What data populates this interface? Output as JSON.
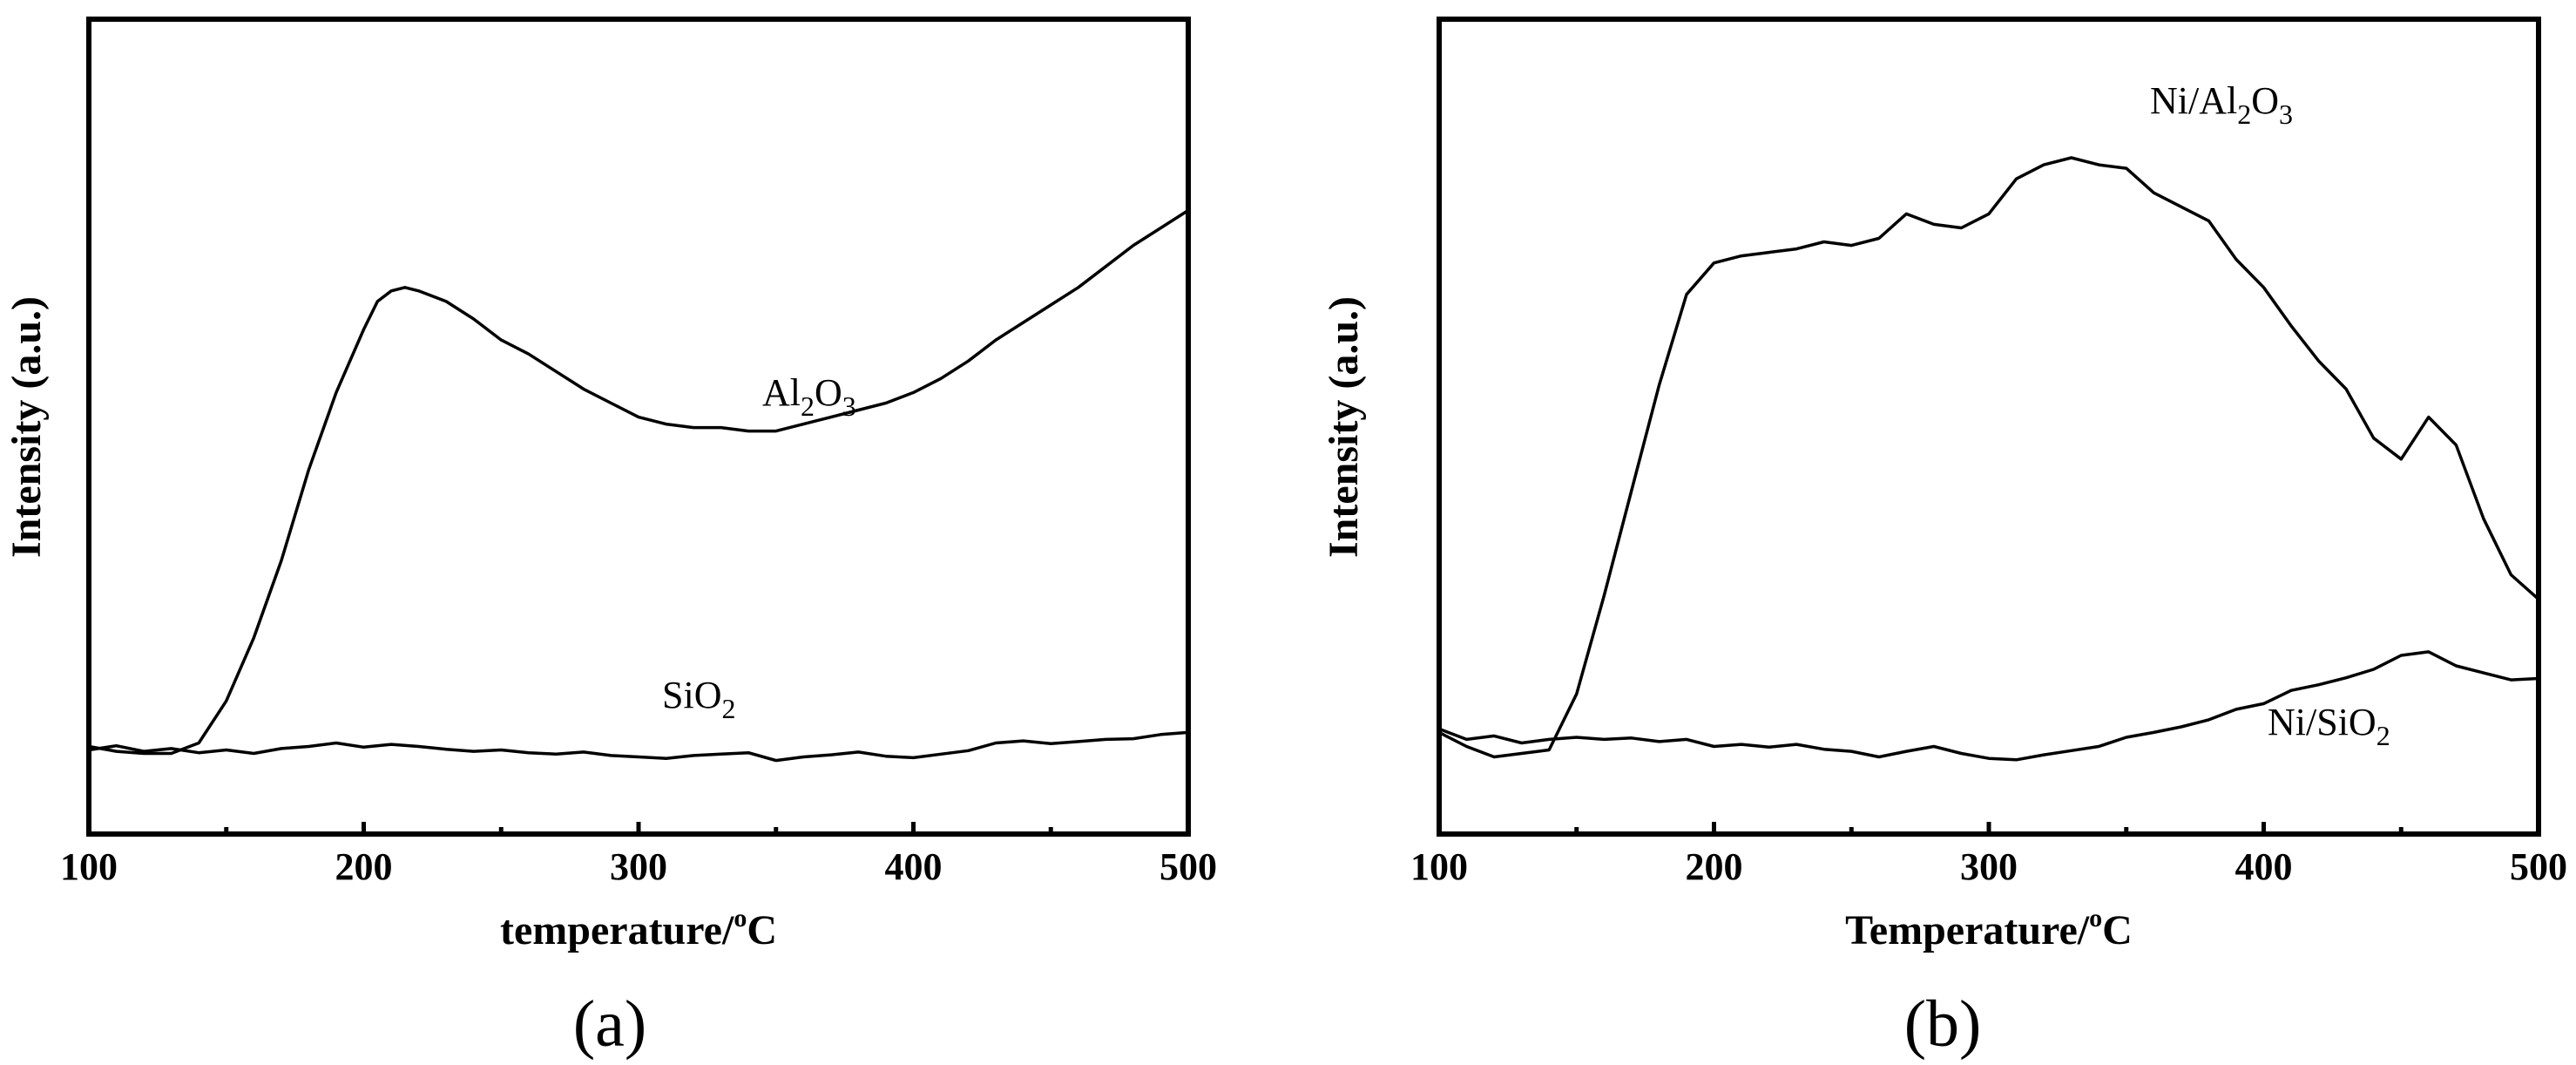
{
  "chart_data": [
    {
      "type": "line",
      "panel_label": "(a)",
      "xlabel": "temperature/",
      "xlabel_sup": "o",
      "xlabel_tail": "C",
      "ylabel": "Intensity (a.u.)",
      "xlim": [
        100,
        500
      ],
      "ylim": [
        0,
        100
      ],
      "xticks": [
        100,
        200,
        300,
        400,
        500
      ],
      "minor_xticks": [
        150,
        250,
        350,
        450
      ],
      "yticks_shown": false,
      "grid": false,
      "legend": "none",
      "series": [
        {
          "name": "Al2O3",
          "label_parts": [
            "Al",
            "2",
            "O",
            "3"
          ],
          "x": [
            100,
            110,
            120,
            130,
            140,
            150,
            160,
            170,
            180,
            190,
            200,
            205,
            210,
            215,
            220,
            230,
            240,
            250,
            260,
            270,
            280,
            290,
            300,
            310,
            320,
            330,
            340,
            350,
            360,
            370,
            380,
            390,
            400,
            410,
            420,
            430,
            440,
            450,
            460,
            470,
            480,
            490,
            500
          ],
          "values": [
            12.5,
            11.8,
            11.5,
            11.5,
            13,
            19,
            28,
            39,
            52,
            63,
            72,
            76,
            77.5,
            78,
            77.5,
            76,
            73.5,
            70.5,
            68.5,
            66,
            63.5,
            61.5,
            59.5,
            58.5,
            58,
            58,
            57.5,
            57.5,
            58.5,
            59.5,
            60.5,
            61.5,
            63,
            65,
            67.5,
            70.5,
            73,
            75.5,
            78,
            81,
            84,
            86.5,
            89
          ]
        },
        {
          "name": "SiO2",
          "label_parts": [
            "SiO",
            "2"
          ],
          "x": [
            100,
            110,
            120,
            130,
            140,
            150,
            160,
            170,
            180,
            190,
            200,
            210,
            220,
            230,
            240,
            250,
            260,
            270,
            280,
            290,
            300,
            310,
            320,
            330,
            340,
            350,
            360,
            370,
            380,
            390,
            400,
            410,
            420,
            430,
            440,
            450,
            460,
            470,
            480,
            490,
            500
          ],
          "values": [
            12,
            12.6,
            11.8,
            12.2,
            11.6,
            12,
            11.5,
            12.2,
            12.5,
            13,
            12.4,
            12.8,
            12.5,
            12.1,
            11.8,
            12,
            11.6,
            11.4,
            11.7,
            11.2,
            11,
            10.8,
            11.2,
            11.4,
            11.6,
            10.5,
            11,
            11.3,
            11.7,
            11.1,
            10.9,
            11.4,
            11.9,
            13,
            13.3,
            12.9,
            13.2,
            13.5,
            13.6,
            14.2,
            14.5
          ]
        }
      ]
    },
    {
      "type": "line",
      "panel_label": "(b)",
      "xlabel": "Temperature/",
      "xlabel_sup": "o",
      "xlabel_tail": "C",
      "ylabel": "Intensity (a.u.)",
      "xlim": [
        100,
        500
      ],
      "ylim": [
        0,
        100
      ],
      "xticks": [
        100,
        200,
        300,
        400,
        500
      ],
      "minor_xticks": [
        150,
        250,
        350,
        450
      ],
      "yticks_shown": false,
      "grid": false,
      "legend": "none",
      "series": [
        {
          "name": "Ni/Al2O3",
          "label_parts": [
            "Ni/Al",
            "2",
            "O",
            "3"
          ],
          "x": [
            100,
            110,
            120,
            130,
            140,
            150,
            160,
            170,
            180,
            190,
            200,
            210,
            220,
            230,
            240,
            250,
            260,
            270,
            280,
            290,
            300,
            310,
            320,
            330,
            340,
            350,
            360,
            370,
            380,
            390,
            400,
            410,
            420,
            430,
            440,
            450,
            460,
            470,
            480,
            490,
            500
          ],
          "values": [
            14.5,
            12.5,
            11,
            11.5,
            12,
            20,
            34,
            49,
            64,
            77,
            81.5,
            82.5,
            83,
            83.5,
            84.5,
            84,
            85,
            88.5,
            87,
            86.5,
            88.5,
            93.5,
            95.5,
            96.5,
            95.5,
            95,
            91.5,
            89.5,
            87.5,
            82,
            78,
            72.5,
            67.5,
            63.5,
            56.5,
            53.5,
            59.5,
            55.5,
            45,
            37,
            33.5
          ]
        },
        {
          "name": "Ni/SiO2",
          "label_parts": [
            "Ni/SiO",
            "2"
          ],
          "x": [
            100,
            110,
            120,
            130,
            140,
            150,
            160,
            170,
            180,
            190,
            200,
            210,
            220,
            230,
            240,
            250,
            260,
            270,
            280,
            290,
            300,
            310,
            320,
            330,
            340,
            350,
            360,
            370,
            380,
            390,
            400,
            410,
            420,
            430,
            440,
            450,
            460,
            470,
            480,
            490,
            500
          ],
          "values": [
            15,
            13.5,
            14,
            13,
            13.5,
            13.8,
            13.5,
            13.7,
            13.2,
            13.5,
            12.5,
            12.8,
            12.4,
            12.8,
            12.1,
            11.8,
            11,
            11.8,
            12.5,
            11.5,
            10.8,
            10.6,
            11.3,
            11.9,
            12.5,
            13.8,
            14.5,
            15.3,
            16.3,
            17.8,
            18.6,
            20.5,
            21.3,
            22.3,
            23.5,
            25.5,
            26,
            24,
            23,
            22,
            22.2
          ]
        }
      ]
    }
  ]
}
